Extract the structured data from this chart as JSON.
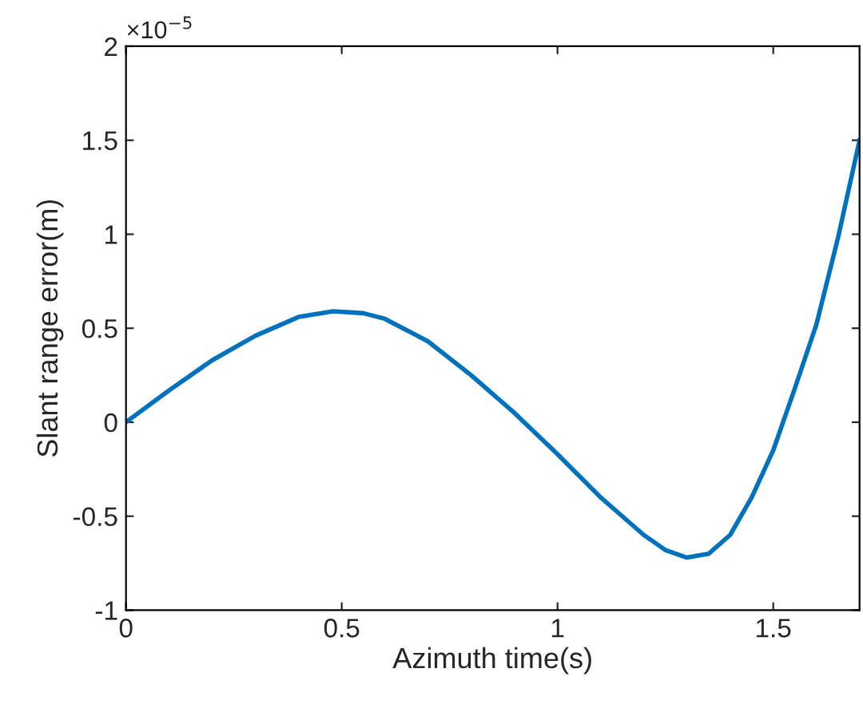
{
  "chart_data": {
    "type": "line",
    "xlabel": "Azimuth time(s)",
    "ylabel": "Slant range error(m)",
    "annotations": [
      "×10$^{−5}$"
    ],
    "series": [
      {
        "color": "#0072bd",
        "x": [
          0,
          0.1,
          0.2,
          0.3,
          0.4,
          0.48,
          0.55,
          0.6,
          0.7,
          0.8,
          0.9,
          1.0,
          1.1,
          1.2,
          1.25,
          1.3,
          1.35,
          1.4,
          1.45,
          1.5,
          1.55,
          1.6,
          1.65,
          1.7
        ],
        "values": [
          0,
          0.17,
          0.33,
          0.46,
          0.56,
          0.59,
          0.58,
          0.55,
          0.43,
          0.25,
          0.05,
          -0.17,
          -0.4,
          -0.6,
          -0.68,
          -0.72,
          -0.7,
          -0.6,
          -0.4,
          -0.15,
          0.18,
          0.52,
          0.98,
          1.5
        ]
      }
    ],
    "xlim": [
      0,
      1.7
    ],
    "xticks": [
      0,
      0.5,
      1,
      1.5
    ],
    "ylim": [
      -1,
      2
    ],
    "yticks": [
      -1,
      -0.5,
      0,
      0.5,
      1,
      1.5,
      2
    ],
    "grid": false,
    "legend": false,
    "line_style": "solid",
    "marker": "none"
  }
}
